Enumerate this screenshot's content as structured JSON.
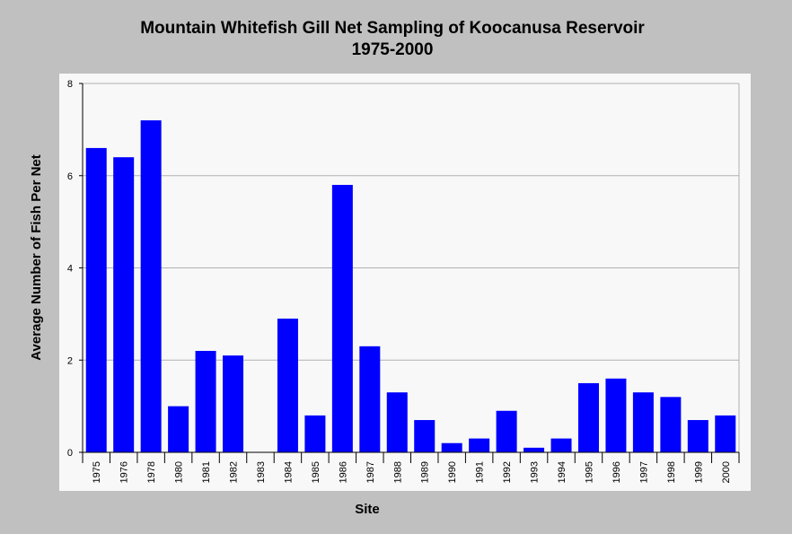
{
  "chart_data": {
    "type": "bar",
    "title": "Mountain Whitefish Gill Net Sampling of Koocanusa Reservoir",
    "subtitle": "1975-2000",
    "xlabel": "Site",
    "ylabel": "Average Number of Fish Per Net",
    "ylim": [
      0,
      8
    ],
    "yticks": [
      "0",
      "2",
      "4",
      "6",
      "8"
    ],
    "grid": true,
    "legend": "none",
    "colors": {
      "bar": "#0000ff",
      "plot_bg": "#f8f8f8",
      "page_bg": "#c0c0c0",
      "grid": "#b0b0b0"
    },
    "categories": [
      "1975",
      "1976",
      "1978",
      "1980",
      "1981",
      "1982",
      "1983",
      "1984",
      "1985",
      "1986",
      "1987",
      "1988",
      "1989",
      "1990",
      "1991",
      "1992",
      "1993",
      "1994",
      "1995",
      "1996",
      "1997",
      "1998",
      "1999",
      "2000"
    ],
    "values": [
      6.6,
      6.4,
      7.2,
      1.0,
      2.2,
      2.1,
      0,
      2.9,
      0.8,
      5.8,
      2.3,
      1.3,
      0.7,
      0.2,
      0.3,
      0.9,
      0.1,
      0.3,
      1.5,
      1.6,
      1.3,
      1.2,
      0.7,
      0.8
    ]
  }
}
